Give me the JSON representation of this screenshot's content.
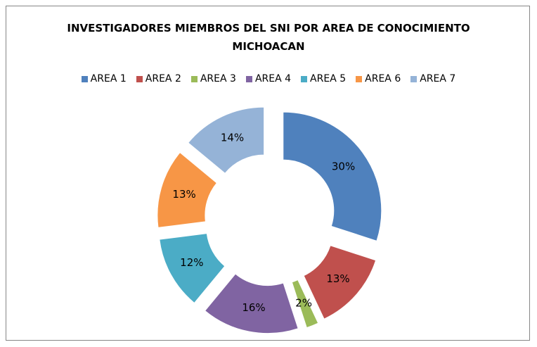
{
  "chart_data": {
    "type": "doughnut",
    "title": "INVESTIGADORES MIEMBROS DEL SNI POR AREA DE CONOCIMIENTO MICHOACAN",
    "categories": [
      "AREA 1",
      "AREA 2",
      "AREA 3",
      "AREA 4",
      "AREA 5",
      "AREA 6",
      "AREA 7"
    ],
    "values": [
      30,
      13,
      2,
      16,
      12,
      13,
      14
    ],
    "value_labels": [
      "30%",
      "13%",
      "2%",
      "16%",
      "12%",
      "13%",
      "14%"
    ],
    "colors": [
      "#4f81bd",
      "#c0504d",
      "#9bbb59",
      "#8064a2",
      "#4bacc6",
      "#f79646",
      "#95b3d7"
    ],
    "legend": "top"
  }
}
